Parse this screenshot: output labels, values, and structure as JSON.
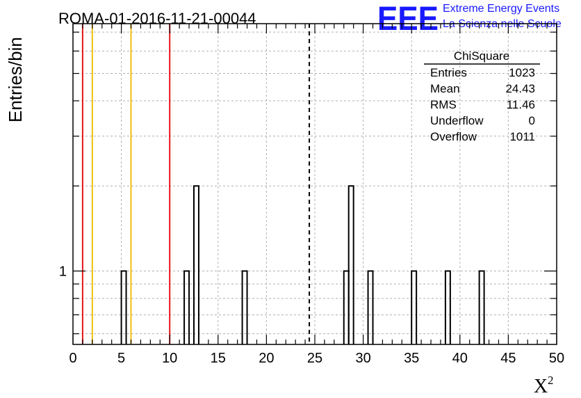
{
  "chart_data": {
    "type": "histogram",
    "title": "ROMA-01-2016-11-21-00044",
    "xlabel": "X",
    "xlabel_superscript": "2",
    "ylabel": "Entries/bin",
    "xlim": [
      0,
      50
    ],
    "ylim_log": [
      0.55,
      7.5
    ],
    "y_scale": "log",
    "x_ticks": [
      "0",
      "5",
      "10",
      "15",
      "20",
      "25",
      "30",
      "35",
      "40",
      "45",
      "50"
    ],
    "y_ticks": [
      "1"
    ],
    "grid": true,
    "bin_width": 0.5,
    "bins": [
      {
        "x": 5.0,
        "count": 1
      },
      {
        "x": 11.5,
        "count": 1
      },
      {
        "x": 12.5,
        "count": 2
      },
      {
        "x": 17.5,
        "count": 1
      },
      {
        "x": 28.0,
        "count": 1
      },
      {
        "x": 28.5,
        "count": 2
      },
      {
        "x": 30.5,
        "count": 1
      },
      {
        "x": 35.0,
        "count": 1
      },
      {
        "x": 38.5,
        "count": 1
      },
      {
        "x": 42.0,
        "count": 1
      }
    ],
    "vertical_lines": [
      {
        "x": 1.0,
        "color": "#e8141a",
        "style": "solid"
      },
      {
        "x": 2.0,
        "color": "#f0c010",
        "style": "solid"
      },
      {
        "x": 6.0,
        "color": "#f0c010",
        "style": "solid"
      },
      {
        "x": 10.0,
        "color": "#e8141a",
        "style": "solid"
      },
      {
        "x": 24.43,
        "color": "#000000",
        "style": "dashed"
      }
    ]
  },
  "stats_box": {
    "title": "ChiSquare",
    "rows": [
      {
        "label": "Entries",
        "value": "1023"
      },
      {
        "label": "Mean",
        "value": "24.43"
      },
      {
        "label": "RMS",
        "value": "11.46"
      },
      {
        "label": "Underflow",
        "value": "0"
      },
      {
        "label": "Overflow",
        "value": "1011"
      }
    ]
  },
  "logo": {
    "mark": "EEE",
    "line1": "Extreme Energy Events",
    "line2": "La Scienza nelle Scuole"
  },
  "colors": {
    "logo": "#1a1aff",
    "red_line": "#e8141a",
    "yellow_line": "#f0c010",
    "grid": "#b0b0b0"
  }
}
